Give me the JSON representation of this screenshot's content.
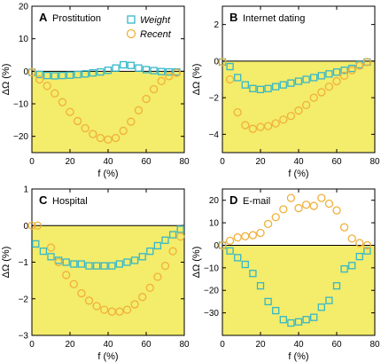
{
  "colors": {
    "weight": "#35b7c9",
    "recent": "#f0b03a",
    "fill": "#f4ec6b",
    "axis": "#000000"
  },
  "legend": {
    "weight": "Weight",
    "recent": "Recent"
  },
  "chart_data": [
    {
      "type": "scatter",
      "letter": "A",
      "title": "Prostitution",
      "xlabel": "f (%)",
      "ylabel": "ΔΩ (%)",
      "xlim": [
        0,
        80
      ],
      "ylim": [
        -25,
        20
      ],
      "xticks": [
        0,
        20,
        40,
        60,
        80
      ],
      "yticks": [
        -20,
        -10,
        0,
        10,
        20
      ],
      "legend_position": "top-right",
      "series": [
        {
          "name": "Weight",
          "marker": "square",
          "x": [
            0,
            4,
            8,
            12,
            16,
            20,
            24,
            28,
            32,
            36,
            40,
            44,
            48,
            52,
            56,
            60,
            64,
            68,
            72,
            76
          ],
          "y": [
            -0.3,
            -1.0,
            -1.3,
            -1.4,
            -1.3,
            -1.2,
            -1.0,
            -0.8,
            -0.5,
            -0.2,
            0.3,
            1.0,
            2.0,
            1.8,
            1.0,
            0.5,
            0.2,
            -0.1,
            -0.2,
            -0.2
          ]
        },
        {
          "name": "Recent",
          "marker": "circle",
          "x": [
            0,
            4,
            8,
            12,
            16,
            20,
            24,
            28,
            32,
            36,
            40,
            44,
            48,
            52,
            56,
            60,
            64,
            68,
            72,
            76
          ],
          "y": [
            -0.3,
            -2.5,
            -4.5,
            -6.8,
            -9.5,
            -12.5,
            -15.3,
            -17.5,
            -19.3,
            -20.5,
            -21.0,
            -20.5,
            -18.3,
            -15.5,
            -12.0,
            -8.5,
            -5.5,
            -3.0,
            -1.5,
            -0.5
          ]
        }
      ]
    },
    {
      "type": "scatter",
      "letter": "B",
      "title": "Internet dating",
      "xlabel": "f (%)",
      "ylabel": "ΔΩ (%)",
      "xlim": [
        0,
        80
      ],
      "ylim": [
        -5,
        3
      ],
      "xticks": [
        0,
        20,
        40,
        60,
        80
      ],
      "yticks": [
        -4,
        -2,
        0,
        2
      ],
      "series": [
        {
          "name": "Weight",
          "marker": "square",
          "x": [
            0,
            4,
            8,
            12,
            16,
            20,
            24,
            28,
            32,
            36,
            40,
            44,
            48,
            52,
            56,
            60,
            64,
            68,
            72,
            76
          ],
          "y": [
            -0.05,
            -0.3,
            -0.9,
            -1.3,
            -1.5,
            -1.55,
            -1.5,
            -1.4,
            -1.3,
            -1.2,
            -1.1,
            -1.0,
            -0.9,
            -0.8,
            -0.7,
            -0.6,
            -0.5,
            -0.4,
            -0.2,
            -0.05
          ]
        },
        {
          "name": "Recent",
          "marker": "circle",
          "x": [
            0,
            4,
            8,
            12,
            16,
            20,
            24,
            28,
            32,
            36,
            40,
            44,
            48,
            52,
            56,
            60,
            64,
            68,
            72,
            76
          ],
          "y": [
            -0.05,
            -1.0,
            -2.8,
            -3.5,
            -3.7,
            -3.6,
            -3.55,
            -3.4,
            -3.2,
            -3.0,
            -2.7,
            -2.4,
            -2.0,
            -1.7,
            -1.4,
            -1.1,
            -0.8,
            -0.5,
            -0.25,
            -0.05
          ]
        }
      ]
    },
    {
      "type": "scatter",
      "letter": "C",
      "title": "Hospital",
      "xlabel": "f (%)",
      "ylabel": "ΔΩ (%)",
      "xlim": [
        0,
        80
      ],
      "ylim": [
        -3,
        1
      ],
      "xticks": [
        0,
        20,
        40,
        60,
        80
      ],
      "yticks": [
        -3,
        -2,
        -1,
        0,
        1
      ],
      "series": [
        {
          "name": "Weight",
          "marker": "square",
          "x": [
            2,
            6,
            10,
            14,
            18,
            22,
            26,
            30,
            34,
            38,
            42,
            46,
            50,
            54,
            58,
            62,
            66,
            70,
            74,
            78
          ],
          "y": [
            -0.5,
            -0.7,
            -0.85,
            -0.95,
            -1.0,
            -1.05,
            -1.05,
            -1.1,
            -1.1,
            -1.1,
            -1.1,
            -1.05,
            -1.0,
            -0.95,
            -0.85,
            -0.7,
            -0.55,
            -0.4,
            -0.25,
            -0.1
          ]
        },
        {
          "name": "Recent",
          "marker": "circle",
          "x": [
            0,
            3,
            10,
            14,
            18,
            22,
            26,
            30,
            34,
            38,
            42,
            46,
            50,
            54,
            58,
            62,
            66,
            70,
            74,
            78
          ],
          "y": [
            0,
            0,
            -0.6,
            -1.0,
            -1.35,
            -1.6,
            -1.85,
            -2.05,
            -2.2,
            -2.3,
            -2.35,
            -2.35,
            -2.3,
            -2.15,
            -1.95,
            -1.7,
            -1.4,
            -1.1,
            -0.7,
            -0.3
          ]
        }
      ]
    },
    {
      "type": "scatter",
      "letter": "D",
      "title": "E-mail",
      "xlabel": "f (%)",
      "ylabel": "ΔΩ (%)",
      "xlim": [
        0,
        80
      ],
      "ylim": [
        -40,
        25
      ],
      "xticks": [
        0,
        20,
        40,
        60,
        80
      ],
      "yticks": [
        -30,
        -20,
        -10,
        0,
        10,
        20
      ],
      "series": [
        {
          "name": "Weight",
          "marker": "square",
          "x": [
            0,
            4,
            8,
            12,
            16,
            20,
            24,
            28,
            32,
            36,
            40,
            44,
            48,
            52,
            56,
            60,
            64,
            68,
            72,
            76
          ],
          "y": [
            0,
            -2.5,
            -5.5,
            -8.5,
            -12.5,
            -18.0,
            -25.0,
            -29.0,
            -33.0,
            -34.5,
            -34.0,
            -33.0,
            -32.0,
            -27.5,
            -24.5,
            -18.0,
            -10.5,
            -9.0,
            -5.0,
            -2.5
          ]
        },
        {
          "name": "Recent",
          "marker": "circle",
          "x": [
            0,
            4,
            8,
            12,
            16,
            20,
            24,
            28,
            32,
            36,
            40,
            44,
            48,
            52,
            56,
            60,
            64,
            68,
            72,
            76
          ],
          "y": [
            0,
            2.0,
            3.5,
            4.0,
            4.5,
            5.5,
            9.5,
            12.5,
            16.0,
            21.0,
            16.5,
            18.0,
            17.5,
            21.0,
            18.5,
            15.5,
            8.0,
            3.0,
            1.0,
            0
          ]
        }
      ]
    }
  ]
}
